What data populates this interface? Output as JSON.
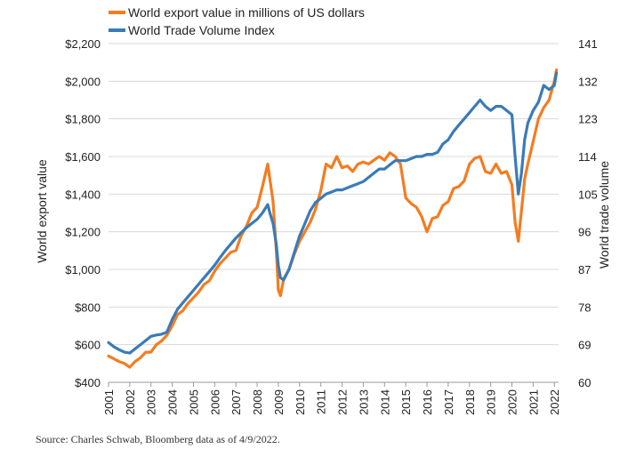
{
  "colors": {
    "export_series": "#f47c20",
    "volume_series": "#3a7bb8",
    "grid": "#d9d9d9",
    "axis": "#999999",
    "text": "#222222"
  },
  "source_note": "Source: Charles Schwab, Bloomberg data as of 4/9/2022.",
  "chart_data": {
    "type": "line",
    "title": "",
    "grid": true,
    "legend_position": "top-left",
    "x_ticks": [
      "2001",
      "2002",
      "2003",
      "2004",
      "2005",
      "2006",
      "2007",
      "2008",
      "2009",
      "2010",
      "2011",
      "2012",
      "2013",
      "2014",
      "2015",
      "2016",
      "2017",
      "2018",
      "2019",
      "2020",
      "2021",
      "2022"
    ],
    "xlim": [
      2001,
      2022.2
    ],
    "left_axis": {
      "label": "World export value",
      "ylim": [
        400,
        2200
      ],
      "ticks": [
        {
          "value": 400,
          "label": "$400"
        },
        {
          "value": 600,
          "label": "$600"
        },
        {
          "value": 800,
          "label": "$800"
        },
        {
          "value": 1000,
          "label": "$1,000"
        },
        {
          "value": 1200,
          "label": "$1,200"
        },
        {
          "value": 1400,
          "label": "$1,400"
        },
        {
          "value": 1600,
          "label": "$1,600"
        },
        {
          "value": 1800,
          "label": "$1,800"
        },
        {
          "value": 2000,
          "label": "$2,000"
        },
        {
          "value": 2200,
          "label": "$2,200"
        }
      ]
    },
    "right_axis": {
      "label": "World trade volume",
      "ylim": [
        60,
        141
      ],
      "ticks": [
        {
          "value": 60,
          "label": "60"
        },
        {
          "value": 69,
          "label": "69"
        },
        {
          "value": 78,
          "label": "78"
        },
        {
          "value": 87,
          "label": "87"
        },
        {
          "value": 96,
          "label": "96"
        },
        {
          "value": 105,
          "label": "105"
        },
        {
          "value": 114,
          "label": "114"
        },
        {
          "value": 123,
          "label": "123"
        },
        {
          "value": 132,
          "label": "132"
        },
        {
          "value": 141,
          "label": "141"
        }
      ]
    },
    "series": [
      {
        "name": "World export value in millions of US dollars",
        "axis": "left",
        "color": "#f47c20",
        "x": [
          2001.0,
          2001.25,
          2001.5,
          2001.75,
          2002.0,
          2002.25,
          2002.5,
          2002.75,
          2003.0,
          2003.25,
          2003.5,
          2003.75,
          2004.0,
          2004.25,
          2004.5,
          2004.75,
          2005.0,
          2005.25,
          2005.5,
          2005.75,
          2006.0,
          2006.25,
          2006.5,
          2006.75,
          2007.0,
          2007.25,
          2007.5,
          2007.75,
          2008.0,
          2008.25,
          2008.5,
          2008.6,
          2008.75,
          2008.9,
          2009.0,
          2009.1,
          2009.25,
          2009.5,
          2009.75,
          2010.0,
          2010.25,
          2010.5,
          2010.75,
          2011.0,
          2011.25,
          2011.5,
          2011.75,
          2012.0,
          2012.25,
          2012.5,
          2012.75,
          2013.0,
          2013.25,
          2013.5,
          2013.75,
          2014.0,
          2014.25,
          2014.5,
          2014.75,
          2015.0,
          2015.25,
          2015.5,
          2015.75,
          2016.0,
          2016.25,
          2016.5,
          2016.75,
          2017.0,
          2017.25,
          2017.5,
          2017.75,
          2018.0,
          2018.25,
          2018.5,
          2018.75,
          2019.0,
          2019.25,
          2019.5,
          2019.75,
          2020.0,
          2020.15,
          2020.3,
          2020.45,
          2020.6,
          2020.75,
          2021.0,
          2021.25,
          2021.5,
          2021.75,
          2022.0,
          2022.1
        ],
        "values": [
          540,
          525,
          510,
          500,
          480,
          510,
          530,
          560,
          560,
          600,
          620,
          650,
          700,
          760,
          780,
          820,
          850,
          880,
          920,
          940,
          990,
          1030,
          1060,
          1090,
          1100,
          1180,
          1230,
          1300,
          1330,
          1440,
          1560,
          1480,
          1360,
          1100,
          890,
          860,
          950,
          1000,
          1080,
          1150,
          1200,
          1250,
          1320,
          1420,
          1560,
          1540,
          1600,
          1540,
          1550,
          1520,
          1560,
          1570,
          1560,
          1580,
          1600,
          1580,
          1620,
          1600,
          1560,
          1380,
          1350,
          1330,
          1280,
          1200,
          1270,
          1280,
          1340,
          1360,
          1430,
          1440,
          1470,
          1560,
          1590,
          1600,
          1520,
          1510,
          1560,
          1510,
          1520,
          1450,
          1250,
          1150,
          1310,
          1480,
          1560,
          1680,
          1800,
          1860,
          1900,
          2000,
          2060
        ]
      },
      {
        "name": "World Trade Volume Index",
        "axis": "right",
        "color": "#3a7bb8",
        "x": [
          2001.0,
          2001.25,
          2001.5,
          2001.75,
          2002.0,
          2002.25,
          2002.5,
          2002.75,
          2003.0,
          2003.25,
          2003.5,
          2003.75,
          2004.0,
          2004.25,
          2004.5,
          2004.75,
          2005.0,
          2005.25,
          2005.5,
          2005.75,
          2006.0,
          2006.25,
          2006.5,
          2006.75,
          2007.0,
          2007.25,
          2007.5,
          2007.75,
          2008.0,
          2008.25,
          2008.5,
          2008.6,
          2008.75,
          2008.9,
          2009.0,
          2009.1,
          2009.25,
          2009.5,
          2009.75,
          2010.0,
          2010.25,
          2010.5,
          2010.75,
          2011.0,
          2011.25,
          2011.5,
          2011.75,
          2012.0,
          2012.25,
          2012.5,
          2012.75,
          2013.0,
          2013.25,
          2013.5,
          2013.75,
          2014.0,
          2014.25,
          2014.5,
          2014.75,
          2015.0,
          2015.25,
          2015.5,
          2015.75,
          2016.0,
          2016.25,
          2016.5,
          2016.75,
          2017.0,
          2017.25,
          2017.5,
          2017.75,
          2018.0,
          2018.25,
          2018.5,
          2018.75,
          2019.0,
          2019.25,
          2019.5,
          2019.75,
          2020.0,
          2020.15,
          2020.3,
          2020.45,
          2020.6,
          2020.75,
          2021.0,
          2021.25,
          2021.5,
          2021.75,
          2022.0,
          2022.1
        ],
        "values": [
          69.5,
          68.5,
          67.8,
          67.2,
          67.0,
          68.0,
          69.0,
          70.0,
          71.0,
          71.3,
          71.5,
          72.0,
          75.0,
          77.5,
          79.0,
          80.5,
          82.0,
          83.5,
          85.0,
          86.5,
          88.0,
          89.8,
          91.5,
          93.0,
          94.5,
          95.8,
          97.0,
          98.0,
          99.0,
          100.5,
          102.5,
          100.5,
          98.0,
          93.0,
          88.0,
          85.0,
          84.5,
          87.0,
          91.0,
          95.0,
          98.0,
          101.0,
          103.0,
          104.0,
          105.0,
          105.5,
          106.0,
          106.0,
          106.5,
          107.0,
          107.5,
          108.0,
          109.0,
          110.0,
          111.0,
          111.0,
          112.0,
          113.0,
          113.0,
          113.0,
          113.5,
          114.0,
          114.0,
          114.5,
          114.5,
          115.0,
          117.0,
          118.0,
          120.0,
          121.5,
          123.0,
          124.5,
          126.0,
          127.5,
          126.0,
          125.0,
          126.0,
          126.0,
          125.0,
          124.0,
          114.0,
          105.0,
          110.0,
          118.0,
          122.0,
          125.0,
          127.0,
          131.0,
          130.0,
          131.0,
          134.0
        ]
      }
    ]
  }
}
